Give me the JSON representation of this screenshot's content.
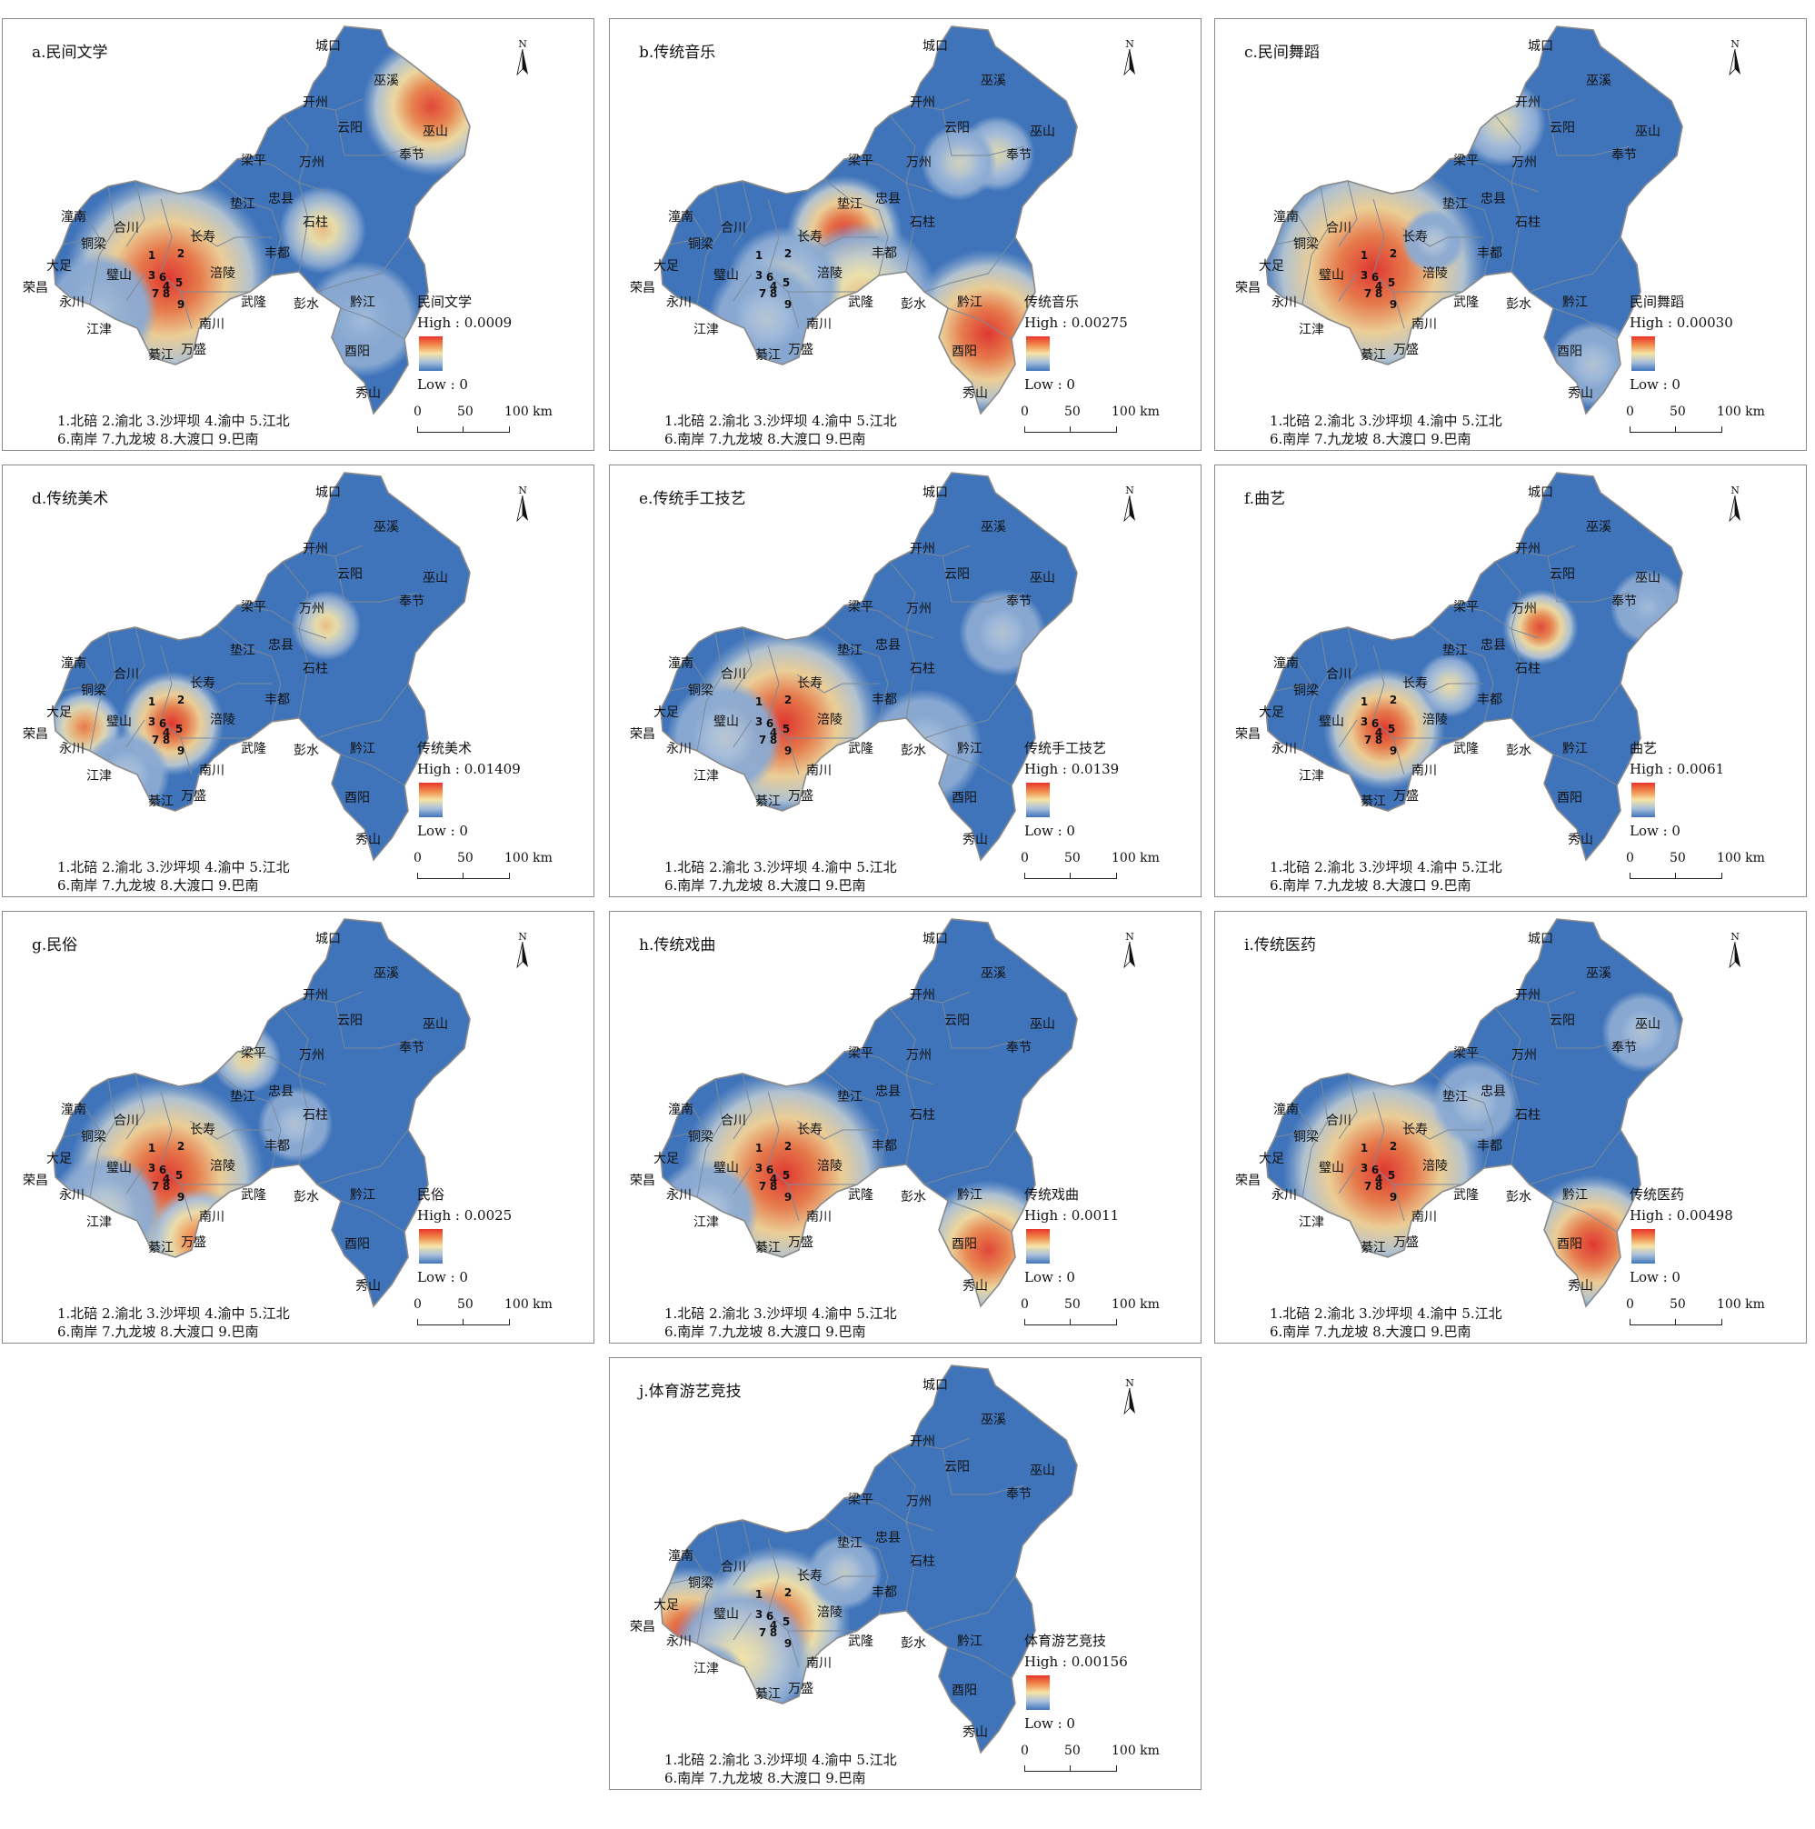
{
  "panels": [
    {
      "title": "a.民间文学",
      "legend_title": "民间文学",
      "high": "High : 0.0009",
      "low": "Low : 0"
    },
    {
      "title": "b.传统音乐",
      "legend_title": "传统音乐",
      "high": "High : 0.00275",
      "low": "Low : 0"
    },
    {
      "title": "c.民间舞蹈",
      "legend_title": "民间舞蹈",
      "high": "High : 0.00030",
      "low": "Low : 0"
    },
    {
      "title": "d.传统美术",
      "legend_title": "传统美术",
      "high": "High : 0.01409",
      "low": "Low : 0"
    },
    {
      "title": "e.传统手工技艺",
      "legend_title": "传统手工技艺",
      "high": "High : 0.0139",
      "low": "Low : 0"
    },
    {
      "title": "f.曲艺",
      "legend_title": "曲艺",
      "high": "High : 0.0061",
      "low": "Low : 0"
    },
    {
      "title": "g.民俗",
      "legend_title": "民俗",
      "high": "High : 0.0025",
      "low": "Low : 0"
    },
    {
      "title": "h.传统戏曲",
      "legend_title": "传统戏曲",
      "high": "High : 0.0011",
      "low": "Low : 0"
    },
    {
      "title": "i.传统医药",
      "legend_title": "传统医药",
      "high": "High : 0.00498",
      "low": "Low : 0"
    },
    {
      "title": "j.体育游艺竞技",
      "legend_title": "体育游艺竞技",
      "high": "High : 0.00156",
      "low": "Low : 0"
    }
  ],
  "north": "N",
  "scale": {
    "t0": "0",
    "t50": "50",
    "t100": "100 km"
  },
  "keys": {
    "line1": "1.北碚  2.渝北  3.沙坪坝  4.渝中  5.江北",
    "line2": "6.南岸  7.九龙坡  8.大渡口  9.巴南"
  },
  "districts": [
    "城口",
    "巫溪",
    "开州",
    "云阳",
    "巫山",
    "奉节",
    "梁平",
    "万州",
    "垫江",
    "忠县",
    "石柱",
    "潼南",
    "合川",
    "铜梁",
    "长寿",
    "丰都",
    "大足",
    "璧山",
    "涪陵",
    "荣昌",
    "永川",
    "武隆",
    "彭水",
    "黔江",
    "江津",
    "南川",
    "綦江",
    "万盛",
    "酉阳",
    "秀山"
  ],
  "numbers": [
    "1",
    "2",
    "3",
    "4",
    "5",
    "6",
    "7",
    "8",
    "9"
  ],
  "colors": {
    "low": "#3f74ba",
    "mid": "#f5e4a6",
    "high": "#e8342a",
    "border": "#8a8a8a"
  }
}
